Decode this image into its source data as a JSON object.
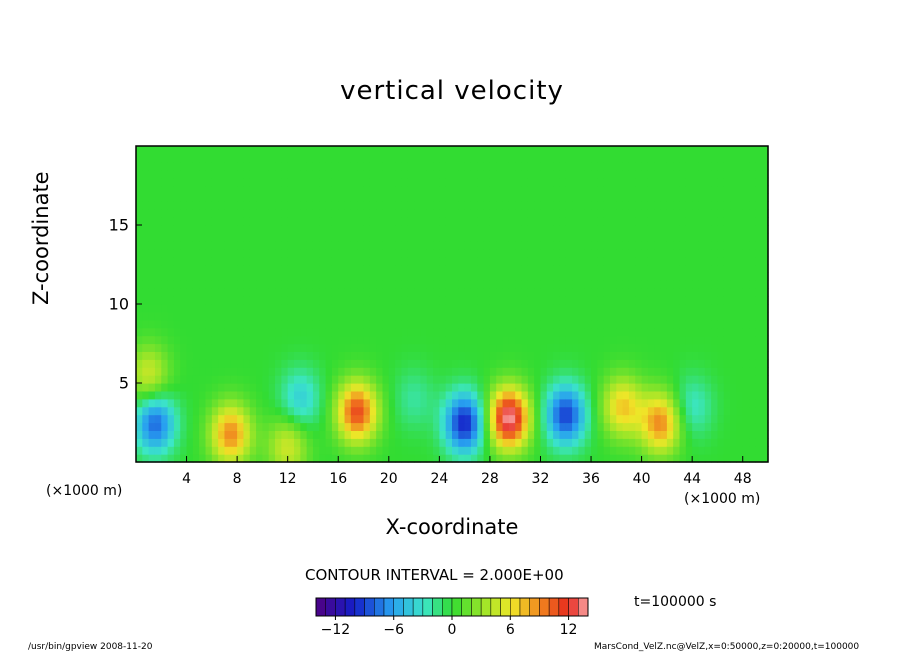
{
  "chart_data": {
    "type": "heatmap",
    "title": "vertical velocity",
    "xlabel": "X-coordinate",
    "ylabel": "Z-coordinate",
    "x_unit_label": "(×1000 m)",
    "xlim": [
      0,
      50
    ],
    "ylim": [
      0,
      20
    ],
    "x_ticks": [
      "4",
      "8",
      "12",
      "16",
      "20",
      "24",
      "28",
      "32",
      "36",
      "40",
      "44",
      "48"
    ],
    "y_ticks": [
      "5",
      "10",
      "15"
    ],
    "contour_interval_label": "CONTOUR INTERVAL = 2.000E+00",
    "time_label": "t=100000 s",
    "colorbar": {
      "min": -14,
      "max": 14,
      "step": 1,
      "tick_labels": [
        "−12",
        "−6",
        "0",
        "6",
        "12"
      ],
      "tick_values": [
        -12,
        -6,
        0,
        6,
        12
      ]
    },
    "features": [
      {
        "x": 1.5,
        "z": 2.5,
        "value": -8
      },
      {
        "x": 1.0,
        "z": 5.5,
        "value": 5
      },
      {
        "x": 7.5,
        "z": 1.8,
        "value": 9
      },
      {
        "x": 12.0,
        "z": 1.0,
        "value": 5
      },
      {
        "x": 13.0,
        "z": 4.0,
        "value": -4
      },
      {
        "x": 17.5,
        "z": 3.2,
        "value": 11
      },
      {
        "x": 22.0,
        "z": 4.0,
        "value": -2
      },
      {
        "x": 26.0,
        "z": 2.5,
        "value": -10
      },
      {
        "x": 29.5,
        "z": 2.8,
        "value": 14
      },
      {
        "x": 34.0,
        "z": 3.0,
        "value": -9
      },
      {
        "x": 38.5,
        "z": 3.5,
        "value": 7
      },
      {
        "x": 41.5,
        "z": 2.5,
        "value": 9
      },
      {
        "x": 44.0,
        "z": 3.5,
        "value": -3
      }
    ]
  },
  "footer": {
    "left": "/usr/bin/gpview   2008-11-20",
    "right": "MarsCond_VelZ.nc@VelZ,x=0:50000,z=0:20000,t=100000"
  }
}
